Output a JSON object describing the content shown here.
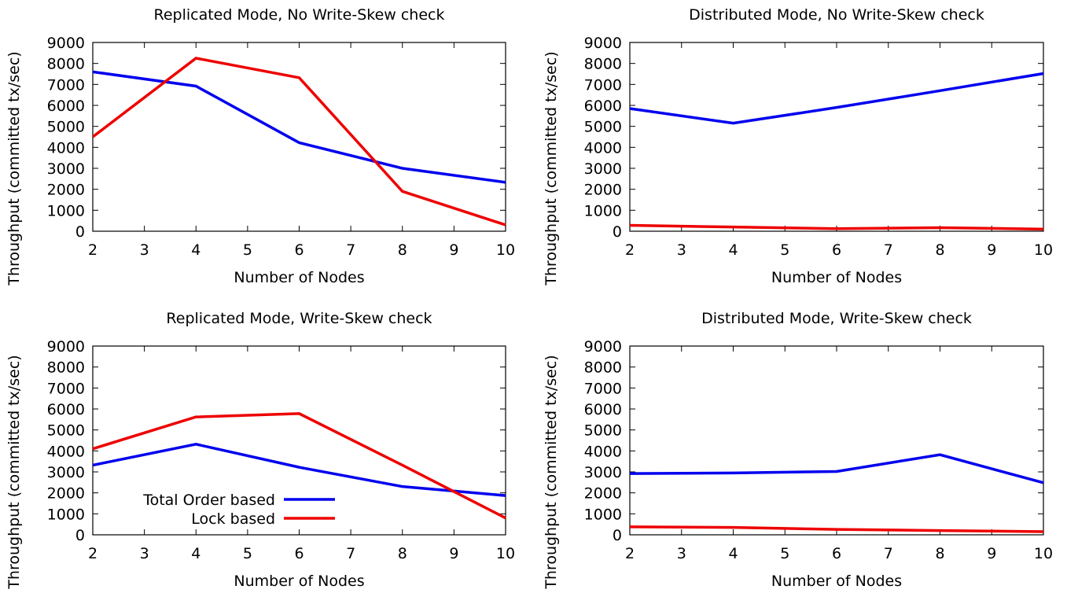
{
  "chart_data": [
    {
      "type": "line",
      "title": "Replicated Mode, No Write-Skew check",
      "xlabel": "Number of Nodes",
      "ylabel": "Throughput (committed tx/sec)",
      "xlim": [
        2,
        10
      ],
      "ylim": [
        0,
        9000
      ],
      "xticks": [
        2,
        3,
        4,
        5,
        6,
        7,
        8,
        9,
        10
      ],
      "yticks": [
        0,
        1000,
        2000,
        3000,
        4000,
        5000,
        6000,
        7000,
        8000,
        9000
      ],
      "grid": false,
      "x": [
        2,
        4,
        6,
        8,
        10
      ],
      "series": [
        {
          "name": "Total Order based",
          "color": "#0000ee",
          "values": [
            7600,
            6920,
            4220,
            3000,
            2330
          ]
        },
        {
          "name": "Lock based",
          "color": "#ee0000",
          "values": [
            4500,
            8250,
            7320,
            1900,
            300
          ]
        }
      ]
    },
    {
      "type": "line",
      "title": "Distributed Mode, No Write-Skew check",
      "xlabel": "Number of Nodes",
      "ylabel": "Throughput (committed tx/sec)",
      "xlim": [
        2,
        10
      ],
      "ylim": [
        0,
        9000
      ],
      "xticks": [
        2,
        3,
        4,
        5,
        6,
        7,
        8,
        9,
        10
      ],
      "yticks": [
        0,
        1000,
        2000,
        3000,
        4000,
        5000,
        6000,
        7000,
        8000,
        9000
      ],
      "grid": false,
      "x": [
        2,
        4,
        6,
        8,
        10
      ],
      "series": [
        {
          "name": "Total Order based",
          "color": "#0000ee",
          "values": [
            5850,
            5150,
            5900,
            6700,
            7520
          ]
        },
        {
          "name": "Lock based",
          "color": "#ee0000",
          "values": [
            280,
            200,
            120,
            170,
            100
          ]
        }
      ]
    },
    {
      "type": "line",
      "title": "Replicated Mode, Write-Skew check",
      "xlabel": "Number of Nodes",
      "ylabel": "Throughput (committed tx/sec)",
      "xlim": [
        2,
        10
      ],
      "ylim": [
        0,
        9000
      ],
      "xticks": [
        2,
        3,
        4,
        5,
        6,
        7,
        8,
        9,
        10
      ],
      "yticks": [
        0,
        1000,
        2000,
        3000,
        4000,
        5000,
        6000,
        7000,
        8000,
        9000
      ],
      "grid": false,
      "legend": {
        "position": "bottom-left",
        "entries": [
          "Total Order based",
          "Lock based"
        ]
      },
      "x": [
        2,
        4,
        6,
        8,
        10
      ],
      "series": [
        {
          "name": "Total Order based",
          "color": "#0000ee",
          "values": [
            3320,
            4320,
            3220,
            2300,
            1870
          ]
        },
        {
          "name": "Lock based",
          "color": "#ee0000",
          "values": [
            4100,
            5620,
            5780,
            3320,
            800
          ]
        }
      ]
    },
    {
      "type": "line",
      "title": "Distributed Mode, Write-Skew check",
      "xlabel": "Number of Nodes",
      "ylabel": "Throughput (committed tx/sec)",
      "xlim": [
        2,
        10
      ],
      "ylim": [
        0,
        9000
      ],
      "xticks": [
        2,
        3,
        4,
        5,
        6,
        7,
        8,
        9,
        10
      ],
      "yticks": [
        0,
        1000,
        2000,
        3000,
        4000,
        5000,
        6000,
        7000,
        8000,
        9000
      ],
      "grid": false,
      "x": [
        2,
        4,
        6,
        8,
        10
      ],
      "series": [
        {
          "name": "Total Order based",
          "color": "#0000ee",
          "values": [
            2920,
            2950,
            3020,
            3820,
            2480
          ]
        },
        {
          "name": "Lock based",
          "color": "#ee0000",
          "values": [
            380,
            350,
            260,
            200,
            150
          ]
        }
      ]
    }
  ]
}
